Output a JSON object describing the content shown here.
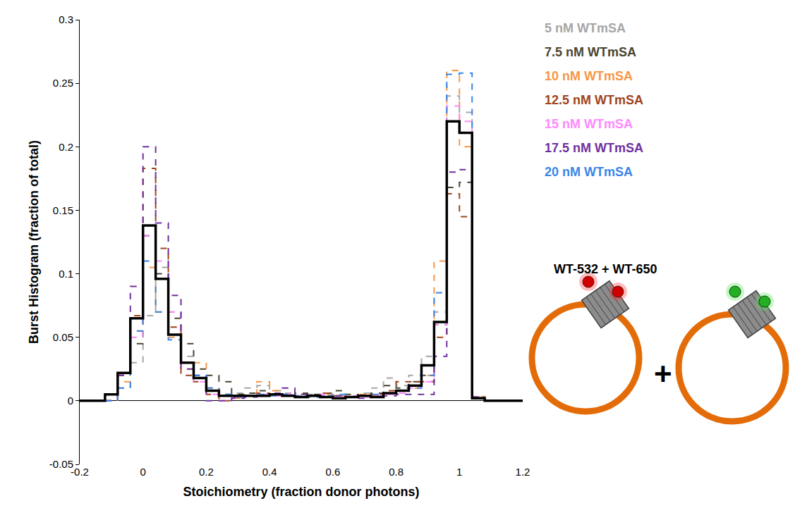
{
  "chart_data": {
    "type": "histogram",
    "x_label": "Stoichiometry (fraction donor photons)",
    "y_label": "Burst Histogram (fraction of total)",
    "annotations": [
      "WT-532 + WT-650",
      "+"
    ],
    "xlim": [
      -0.2,
      1.2
    ],
    "ylim": [
      -0.05,
      0.3
    ],
    "xticks": [
      -0.2,
      0,
      0.2,
      0.4,
      0.6,
      0.8,
      1,
      1.2
    ],
    "yticks": [
      -0.05,
      0,
      0.05,
      0.1,
      0.15,
      0.2,
      0.25,
      0.3
    ],
    "grid": false,
    "legend": "upper right",
    "bins": [
      -0.2,
      -0.16,
      -0.12,
      -0.08,
      -0.04,
      0,
      0.04,
      0.08,
      0.12,
      0.16,
      0.2,
      0.24,
      0.28,
      0.32,
      0.36,
      0.4,
      0.44,
      0.48,
      0.52,
      0.56,
      0.6,
      0.64,
      0.68,
      0.72,
      0.76,
      0.8,
      0.84,
      0.88,
      0.92,
      0.96,
      1,
      1.04,
      1.08,
      1.12,
      1.16,
      1.2
    ],
    "series": [
      {
        "name": "5 nM WTmSA",
        "color": "#a6a6a6",
        "line_style": "dashed",
        "values": [
          0,
          0,
          0,
          0.01,
          0.03,
          0.067,
          0.105,
          0.07,
          0.035,
          0.02,
          0.01,
          0.005,
          0.006,
          0.01,
          0.012,
          0.008,
          0.006,
          0.004,
          0.005,
          0.004,
          0.003,
          0.004,
          0.006,
          0.01,
          0.018,
          0.012,
          0.02,
          0.035,
          0.07,
          0.24,
          0.227,
          0.003,
          0,
          0,
          0
        ]
      },
      {
        "name": "7.5 nM WTmSA",
        "color": "#4a4530",
        "line_style": "dashed",
        "values": [
          0,
          0,
          0.005,
          0.02,
          0.045,
          0.13,
          0.1,
          0.065,
          0.045,
          0.025,
          0.02,
          0.015,
          0.005,
          0.006,
          0.008,
          0.005,
          0.004,
          0.006,
          0.005,
          0.006,
          0.008,
          0.005,
          0.004,
          0.006,
          0.012,
          0.01,
          0.015,
          0.02,
          0.06,
          0.168,
          0.172,
          0.003,
          0,
          0,
          0
        ]
      },
      {
        "name": "10 nM WTmSA",
        "color": "#f79646",
        "line_style": "dashed",
        "values": [
          0,
          0,
          0,
          0.015,
          0.055,
          0.105,
          0.07,
          0.05,
          0.025,
          0.03,
          0.01,
          0.005,
          0.002,
          0.004,
          0.015,
          0.008,
          0.005,
          0.004,
          0.003,
          0.005,
          0.004,
          0.003,
          0.005,
          0.004,
          0.006,
          0.008,
          0.01,
          0.02,
          0.11,
          0.26,
          0.2,
          0.003,
          0,
          0,
          0
        ]
      },
      {
        "name": "12.5 nM WTmSA",
        "color": "#a0441c",
        "line_style": "dashed",
        "values": [
          0,
          0,
          0,
          0.02,
          0.067,
          0.183,
          0.12,
          0.058,
          0.02,
          0.015,
          0.005,
          0,
          0.003,
          0.004,
          0.006,
          0.005,
          0.004,
          0.003,
          0.004,
          0.006,
          0.004,
          0.003,
          0.004,
          0.005,
          0.008,
          0.015,
          0.015,
          0.015,
          0.05,
          0.163,
          0.145,
          0.003,
          0,
          0,
          0
        ]
      },
      {
        "name": "15 nM WTmSA",
        "color": "#ff88ff",
        "line_style": "dashed",
        "values": [
          0,
          0,
          0,
          0.02,
          0.05,
          0.13,
          0.11,
          0.07,
          0.03,
          0.015,
          0.005,
          0,
          0.003,
          0.004,
          0.005,
          0.004,
          0.005,
          0.003,
          0.004,
          0.005,
          0.003,
          0.004,
          0.003,
          0.004,
          0.005,
          0.006,
          0.01,
          0.015,
          0.06,
          0.232,
          0.22,
          0.002,
          0,
          0,
          0
        ]
      },
      {
        "name": "17.5 nM WTmSA",
        "color": "#7030a0",
        "line_style": "dashed",
        "values": [
          0,
          0,
          0,
          0.02,
          0.09,
          0.2,
          0.14,
          0.083,
          0.025,
          0.02,
          0,
          0,
          0.002,
          0.003,
          0.004,
          0.006,
          0.01,
          0.005,
          0.004,
          0.003,
          0.004,
          0.003,
          0.002,
          0.003,
          0.004,
          0.005,
          0.005,
          0.005,
          0.035,
          0.18,
          0.182,
          0.003,
          0,
          0,
          0
        ]
      },
      {
        "name": "20 nM WTmSA",
        "color": "#3a86e8",
        "line_style": "dashed",
        "values": [
          0,
          0,
          0,
          0.01,
          0.055,
          0.11,
          0.07,
          0.048,
          0.03,
          0.02,
          0.01,
          0.005,
          0.003,
          0.004,
          0.005,
          0.004,
          0.005,
          0.004,
          0.003,
          0.004,
          0.005,
          0.003,
          0.004,
          0.005,
          0.006,
          0.008,
          0.01,
          0.02,
          0.085,
          0.257,
          0.258,
          0.002,
          0,
          0,
          0
        ]
      },
      {
        "color": "#000000",
        "line_style": "solid",
        "values": [
          0,
          0,
          0.005,
          0.022,
          0.065,
          0.138,
          0.096,
          0.052,
          0.03,
          0.018,
          0.008,
          0.004,
          0.004,
          0.004,
          0.004,
          0.005,
          0.004,
          0.003,
          0.004,
          0.003,
          0.002,
          0.003,
          0.004,
          0.003,
          0.006,
          0.008,
          0.012,
          0.028,
          0.062,
          0.22,
          0.211,
          0.002,
          0,
          0,
          0
        ]
      }
    ]
  }
}
